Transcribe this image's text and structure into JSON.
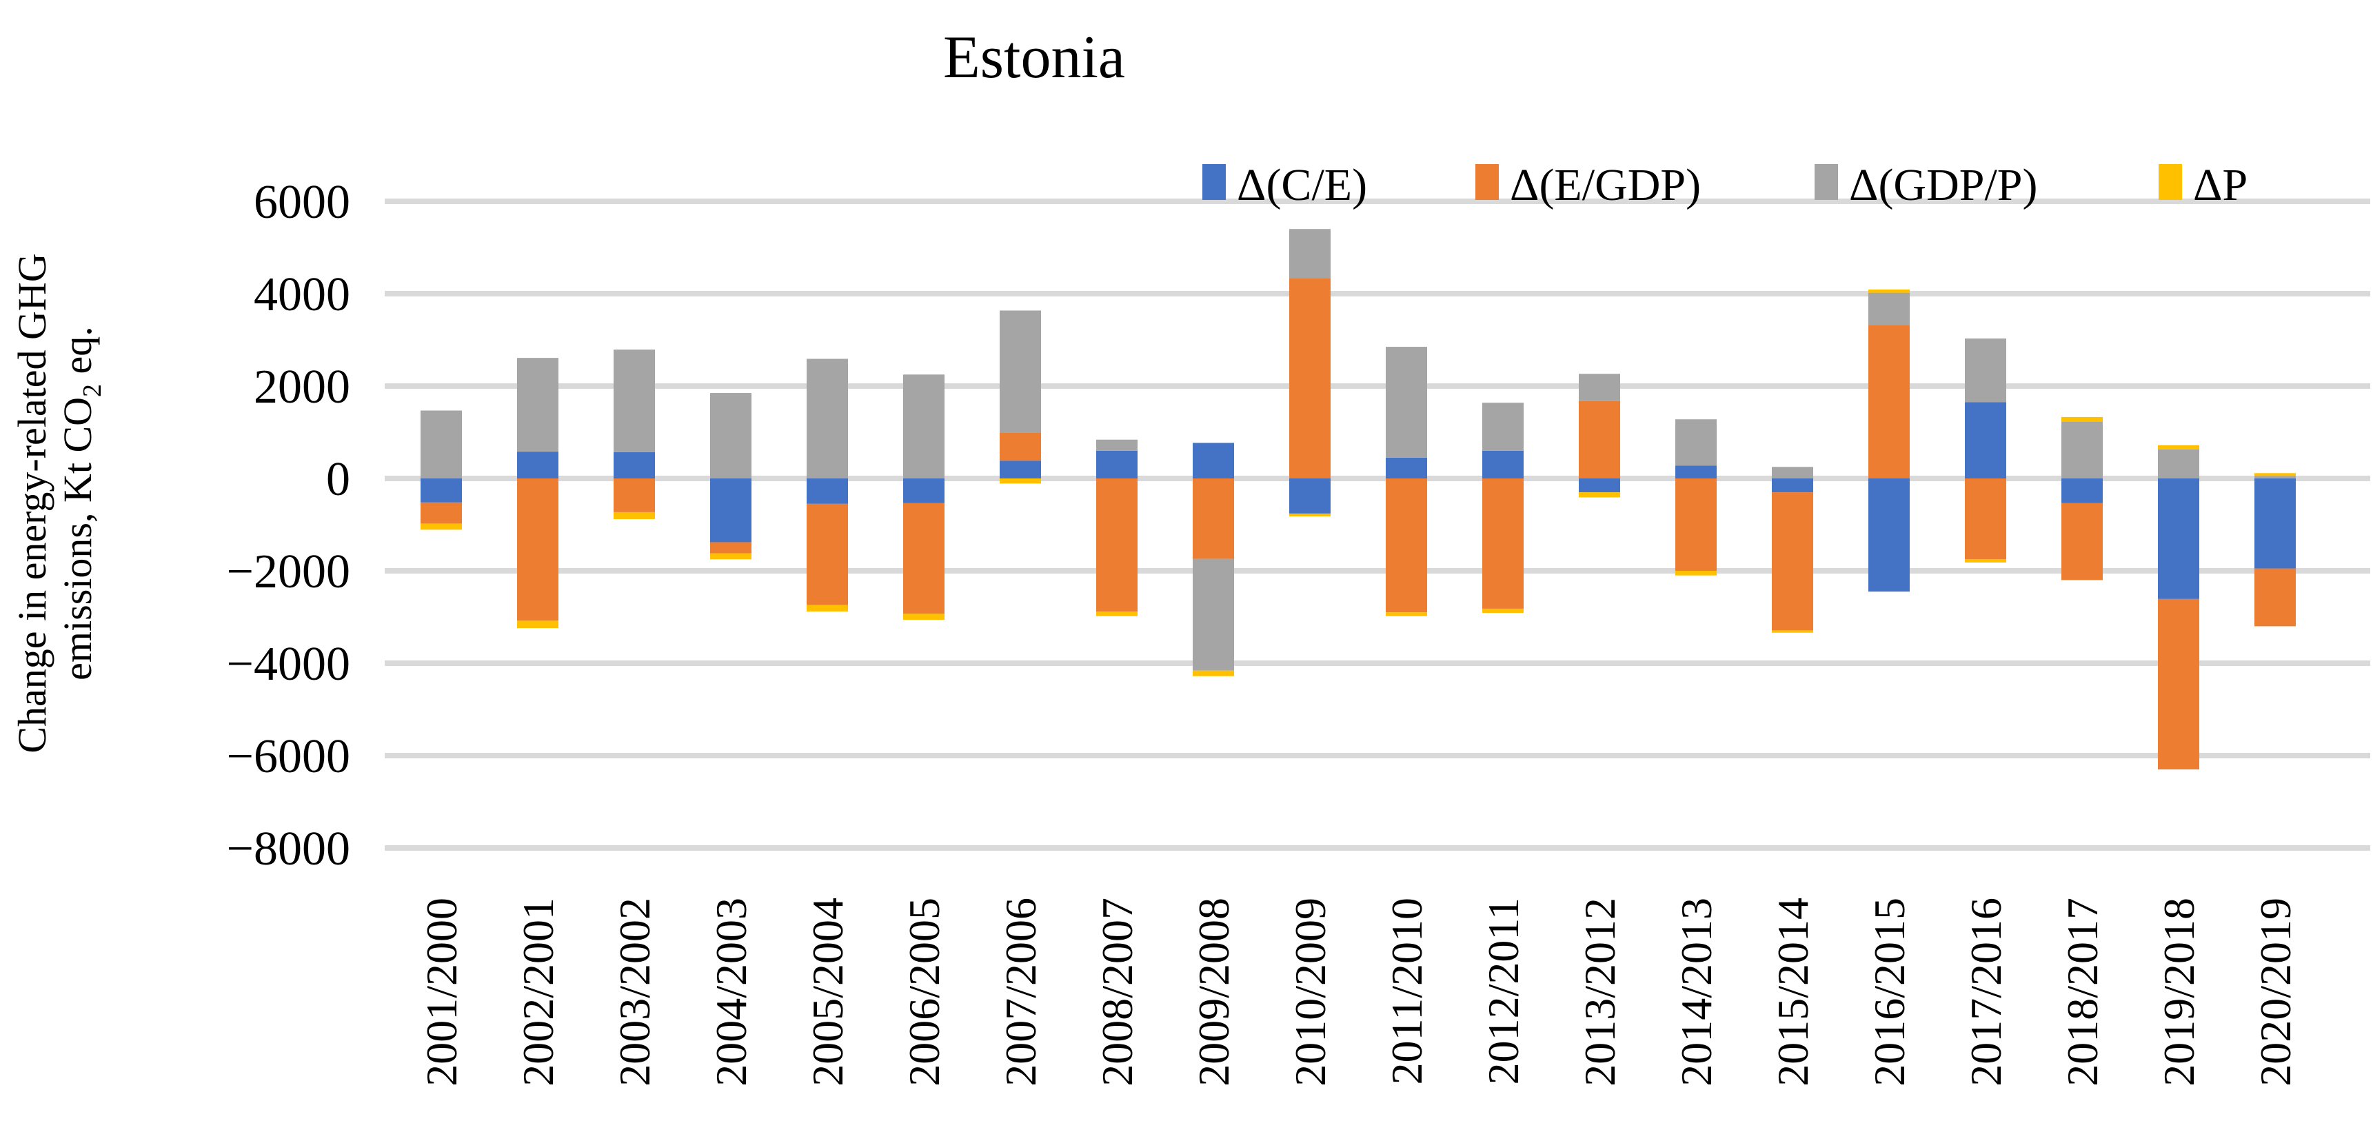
{
  "title": "Estonia",
  "y_axis": {
    "label_line1": "Change in energy-related GHG",
    "label_line2_prefix": "emissions, Kt CO",
    "label_line2_sub": "2",
    "label_line2_suffix": " eq.",
    "ticks": [
      6000,
      4000,
      2000,
      0,
      -2000,
      -4000,
      -6000,
      -8000
    ]
  },
  "legend": [
    {
      "label": "Δ(C/E)",
      "color": "#4472C4"
    },
    {
      "label": "Δ(E/GDP)",
      "color": "#ED7D31"
    },
    {
      "label": "Δ(GDP/P)",
      "color": "#A5A5A5"
    },
    {
      "label": "ΔP",
      "color": "#FFC000"
    }
  ],
  "colors": {
    "gridline": "#D9D9D9",
    "text": "#000000",
    "background": "#FFFFFF"
  },
  "chart_data": {
    "type": "bar",
    "stacked": true,
    "title": "Estonia",
    "ylabel": "Change in energy-related GHG emissions, Kt CO2 eq.",
    "xlabel": "",
    "ylim": [
      -8000,
      6000
    ],
    "ytick_step": 2000,
    "grid": true,
    "legend_position": "top-right",
    "categories": [
      "2001/2000",
      "2002/2001",
      "2003/2002",
      "2004/2003",
      "2005/2004",
      "2006/2005",
      "2007/2006",
      "2008/2007",
      "2009/2008",
      "2010/2009",
      "2011/2010",
      "2012/2011",
      "2013/2012",
      "2014/2013",
      "2015/2014",
      "2016/2015",
      "2017/2016",
      "2018/2017",
      "2019/2018",
      "2020/2019"
    ],
    "series": [
      {
        "name": "Δ(C/E)",
        "color": "#4472C4",
        "values": [
          -520,
          580,
          570,
          -1380,
          -550,
          -530,
          385,
          600,
          770,
          -760,
          450,
          600,
          -300,
          280,
          -300,
          -2450,
          1650,
          -530,
          -2610,
          -1950
        ]
      },
      {
        "name": "Δ(E/GDP)",
        "color": "#ED7D31",
        "values": [
          -460,
          -3080,
          -730,
          -240,
          -2190,
          -2400,
          610,
          -2880,
          -1740,
          4340,
          -2900,
          -2820,
          1675,
          -2000,
          -2990,
          3320,
          -1750,
          -1670,
          -3690,
          -1250
        ]
      },
      {
        "name": "Δ(GDP/P)",
        "color": "#A5A5A5",
        "values": [
          1470,
          2030,
          2220,
          1850,
          2590,
          2250,
          2640,
          240,
          -2420,
          1060,
          2400,
          1040,
          590,
          1000,
          250,
          700,
          1380,
          1230,
          630,
          55
        ]
      },
      {
        "name": "ΔP",
        "color": "#FFC000",
        "values": [
          -130,
          -160,
          -150,
          -130,
          -140,
          -130,
          -110,
          -100,
          -120,
          -60,
          -80,
          -90,
          -110,
          -100,
          -50,
          70,
          -70,
          100,
          90,
          60
        ]
      }
    ]
  }
}
